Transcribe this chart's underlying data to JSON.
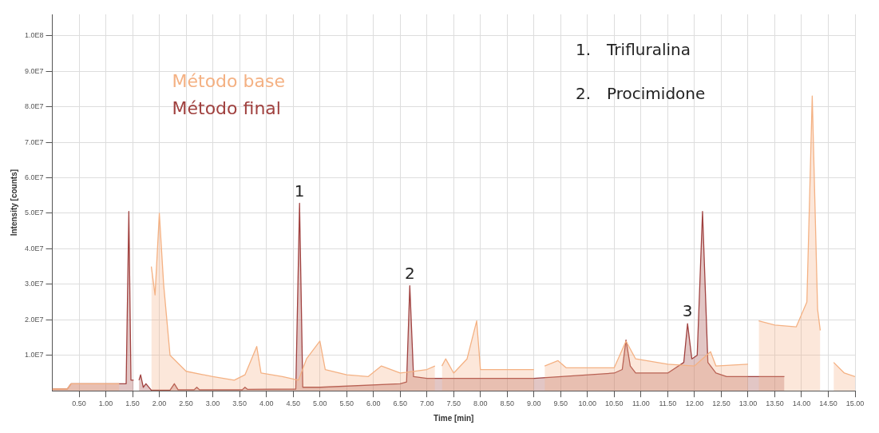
{
  "chart_data": {
    "type": "area",
    "xlabel": "Time [min]",
    "ylabel": "Intensity [counts]",
    "xlim": [
      0,
      15
    ],
    "ylim": [
      0,
      106000000
    ],
    "xticks": [
      {
        "value": 0.5,
        "label": "0.50"
      },
      {
        "value": 1,
        "label": "1.00"
      },
      {
        "value": 1.5,
        "label": "1.50"
      },
      {
        "value": 2,
        "label": "2.00"
      },
      {
        "value": 2.5,
        "label": "2.50"
      },
      {
        "value": 3,
        "label": "3.00"
      },
      {
        "value": 3.5,
        "label": "3.50"
      },
      {
        "value": 4,
        "label": "4.00"
      },
      {
        "value": 4.5,
        "label": "4.50"
      },
      {
        "value": 5,
        "label": "5.00"
      },
      {
        "value": 5.5,
        "label": "5.50"
      },
      {
        "value": 6,
        "label": "6.00"
      },
      {
        "value": 6.5,
        "label": "6.50"
      },
      {
        "value": 7,
        "label": "7.00"
      },
      {
        "value": 7.5,
        "label": "7.50"
      },
      {
        "value": 8,
        "label": "8.00"
      },
      {
        "value": 8.5,
        "label": "8.50"
      },
      {
        "value": 9,
        "label": "9.00"
      },
      {
        "value": 9.5,
        "label": "9.50"
      },
      {
        "value": 10,
        "label": "10.00"
      },
      {
        "value": 10.5,
        "label": "10.50"
      },
      {
        "value": 11,
        "label": "11.00"
      },
      {
        "value": 11.5,
        "label": "11.50"
      },
      {
        "value": 12,
        "label": "12.00"
      },
      {
        "value": 12.5,
        "label": "12.50"
      },
      {
        "value": 13,
        "label": "13.00"
      },
      {
        "value": 13.5,
        "label": "13.50"
      },
      {
        "value": 14,
        "label": "14.00"
      },
      {
        "value": 14.5,
        "label": "14.50"
      },
      {
        "value": 15,
        "label": "15.00"
      }
    ],
    "yticks": [
      {
        "value": 10000000,
        "label": "1.0E7"
      },
      {
        "value": 20000000,
        "label": "2.0E7"
      },
      {
        "value": 30000000,
        "label": "3.0E7"
      },
      {
        "value": 40000000,
        "label": "4.0E7"
      },
      {
        "value": 50000000,
        "label": "5.0E7"
      },
      {
        "value": 60000000,
        "label": "6.0E7"
      },
      {
        "value": 70000000,
        "label": "7.0E7"
      },
      {
        "value": 80000000,
        "label": "8.0E7"
      },
      {
        "value": 90000000,
        "label": "9.0E7"
      },
      {
        "value": 100000000,
        "label": "1.0E8"
      }
    ],
    "grid": true,
    "legend": "top left",
    "series": [
      {
        "name": "Método base",
        "color": "#f4b183",
        "x": [
          0,
          0.28,
          0.35,
          1.2,
          1.25,
          1.27,
          1.78,
          1.85,
          1.92,
          2.0,
          2.08,
          2.2,
          2.5,
          3.0,
          3.4,
          3.6,
          3.82,
          3.9,
          4.3,
          4.6,
          4.75,
          5.0,
          5.1,
          5.5,
          5.9,
          6.15,
          6.5,
          7.0,
          7.15,
          7.18,
          7.22,
          7.28,
          7.35,
          7.5,
          7.75,
          7.93,
          8.0,
          9.0,
          9.07,
          9.12,
          9.2,
          9.45,
          9.6,
          10.5,
          10.72,
          10.9,
          11.5,
          12.0,
          12.3,
          12.4,
          13.0,
          13.04,
          13.1,
          13.2,
          13.5,
          13.9,
          14.1,
          14.2,
          14.3,
          14.35,
          14.47,
          14.52,
          14.6,
          14.8,
          15.0
        ],
        "values": [
          500000,
          500000,
          2000000,
          2000000,
          2000000,
          null,
          null,
          35000000,
          27000000,
          50000000,
          30000000,
          10000000,
          5500000,
          4000000,
          3000000,
          4500000,
          12500000,
          5000000,
          4000000,
          3000000,
          9000000,
          14000000,
          6000000,
          4500000,
          4000000,
          7000000,
          5000000,
          6000000,
          7000000,
          null,
          null,
          7000000,
          9000000,
          5000000,
          9000000,
          19700000,
          6000000,
          6000000,
          null,
          null,
          7000000,
          8500000,
          6500000,
          6500000,
          14000000,
          9000000,
          7500000,
          7000000,
          11000000,
          7000000,
          7500000,
          null,
          null,
          19700000,
          18500000,
          18000000,
          25000000,
          83000000,
          23000000,
          17000000,
          null,
          null,
          8000000,
          5000000,
          4000000
        ]
      },
      {
        "name": "Método final",
        "color": "#a0413f",
        "x": [
          0,
          0.28,
          0.35,
          1.38,
          1.43,
          1.47,
          1.52,
          1.57,
          1.62,
          1.65,
          1.7,
          1.75,
          1.85,
          2.2,
          2.28,
          2.35,
          2.65,
          2.7,
          2.75,
          3.55,
          3.6,
          3.65,
          4.55,
          4.62,
          4.68,
          5.0,
          6.5,
          6.62,
          6.68,
          6.75,
          7.0,
          9.0,
          10.5,
          10.65,
          10.72,
          10.8,
          10.9,
          11.5,
          11.8,
          11.87,
          11.95,
          12.05,
          12.15,
          12.25,
          12.4,
          12.6,
          13.68
        ],
        "values": [
          500000,
          500000,
          2000000,
          2000000,
          50500000,
          3000000,
          3000000,
          null,
          3000000,
          4500000,
          1000000,
          2000000,
          200000,
          200000,
          2000000,
          300000,
          300000,
          1000000,
          300000,
          300000,
          1000000,
          400000,
          500000,
          52800000,
          1000000,
          1000000,
          2000000,
          2500000,
          29600000,
          4000000,
          3500000,
          3500000,
          5000000,
          6000000,
          14300000,
          7000000,
          5000000,
          5000000,
          8000000,
          18900000,
          9000000,
          10000000,
          50500000,
          8000000,
          5000000,
          4000000,
          4000000
        ]
      }
    ],
    "annotations": [
      {
        "text": "1",
        "x": 4.62,
        "y": 52800000
      },
      {
        "text": "2",
        "x": 6.68,
        "y": 29600000
      },
      {
        "text": "3",
        "x": 11.87,
        "y": 18900000
      },
      "1. Trifluralina",
      "2. Procimidone"
    ]
  }
}
